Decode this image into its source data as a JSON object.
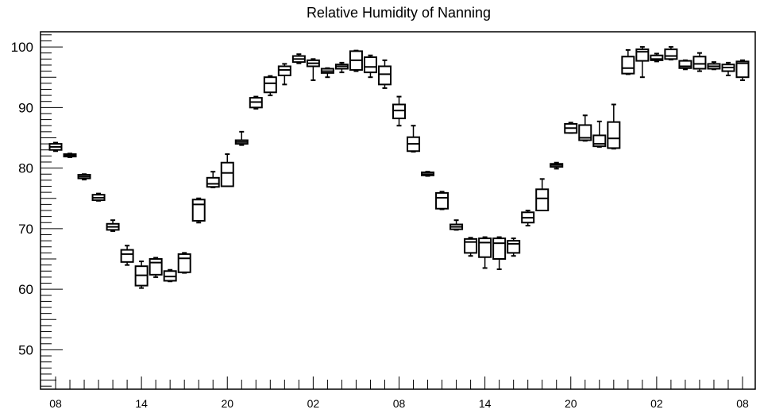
{
  "chart_data": {
    "type": "box",
    "title": "Relative Humidity of Nanning",
    "xlabel": "",
    "ylabel": "",
    "ylim": [
      43.5,
      102.5
    ],
    "yticks": [
      50,
      60,
      70,
      80,
      90,
      100
    ],
    "x_tick_labels": [
      "08",
      "14",
      "20",
      "02",
      "08",
      "14",
      "20",
      "02",
      "08"
    ],
    "x_tick_hours": [
      0,
      6,
      12,
      18,
      24,
      30,
      36,
      42,
      48
    ],
    "grid": false,
    "legend": "none",
    "boxes": [
      {
        "hour": 0,
        "q1": 83.0,
        "median": 83.5,
        "q3": 84.0,
        "min": 82.8,
        "max": 84.2
      },
      {
        "hour": 1,
        "q1": 81.9,
        "median": 82.1,
        "q3": 82.3,
        "min": 81.8,
        "max": 82.4
      },
      {
        "hour": 2,
        "q1": 78.3,
        "median": 78.6,
        "q3": 78.9,
        "min": 78.1,
        "max": 79.0
      },
      {
        "hour": 3,
        "q1": 74.7,
        "median": 75.1,
        "q3": 75.6,
        "min": 74.6,
        "max": 75.8
      },
      {
        "hour": 4,
        "q1": 69.8,
        "median": 70.3,
        "q3": 70.8,
        "min": 69.6,
        "max": 71.4
      },
      {
        "hour": 5,
        "q1": 64.5,
        "median": 65.8,
        "q3": 66.5,
        "min": 64.0,
        "max": 67.2
      },
      {
        "hour": 6,
        "q1": 60.6,
        "median": 62.3,
        "q3": 63.8,
        "min": 60.2,
        "max": 64.6
      },
      {
        "hour": 7,
        "q1": 62.4,
        "median": 64.4,
        "q3": 65.0,
        "min": 62.0,
        "max": 65.2
      },
      {
        "hour": 8,
        "q1": 61.4,
        "median": 62.1,
        "q3": 63.0,
        "min": 61.3,
        "max": 63.2
      },
      {
        "hour": 9,
        "q1": 62.8,
        "median": 65.1,
        "q3": 65.8,
        "min": 62.7,
        "max": 66.0
      },
      {
        "hour": 10,
        "q1": 71.3,
        "median": 74.0,
        "q3": 74.8,
        "min": 71.0,
        "max": 75.0
      },
      {
        "hour": 11,
        "q1": 76.9,
        "median": 77.4,
        "q3": 78.4,
        "min": 76.8,
        "max": 79.4
      },
      {
        "hour": 12,
        "q1": 77.0,
        "median": 79.2,
        "q3": 80.9,
        "min": 77.0,
        "max": 82.3
      },
      {
        "hour": 13,
        "q1": 84.0,
        "median": 84.3,
        "q3": 84.6,
        "min": 83.8,
        "max": 86.0
      },
      {
        "hour": 14,
        "q1": 90.0,
        "median": 90.9,
        "q3": 91.6,
        "min": 89.8,
        "max": 91.8
      },
      {
        "hour": 15,
        "q1": 92.5,
        "median": 94.0,
        "q3": 95.0,
        "min": 92.0,
        "max": 95.2
      },
      {
        "hour": 16,
        "q1": 95.3,
        "median": 96.2,
        "q3": 96.8,
        "min": 93.8,
        "max": 97.2
      },
      {
        "hour": 17,
        "q1": 97.5,
        "median": 98.0,
        "q3": 98.5,
        "min": 97.3,
        "max": 98.8
      },
      {
        "hour": 18,
        "q1": 96.8,
        "median": 97.3,
        "q3": 97.8,
        "min": 94.5,
        "max": 98.0
      },
      {
        "hour": 19,
        "q1": 95.7,
        "median": 96.0,
        "q3": 96.4,
        "min": 95.0,
        "max": 96.5
      },
      {
        "hour": 20,
        "q1": 96.4,
        "median": 96.8,
        "q3": 97.1,
        "min": 95.8,
        "max": 97.4
      },
      {
        "hour": 21,
        "q1": 96.2,
        "median": 97.8,
        "q3": 99.3,
        "min": 96.0,
        "max": 99.4
      },
      {
        "hour": 22,
        "q1": 95.8,
        "median": 96.7,
        "q3": 98.3,
        "min": 95.0,
        "max": 98.6
      },
      {
        "hour": 23,
        "q1": 93.8,
        "median": 95.5,
        "q3": 96.8,
        "min": 93.2,
        "max": 97.8
      },
      {
        "hour": 24,
        "q1": 88.2,
        "median": 89.5,
        "q3": 90.5,
        "min": 87.0,
        "max": 91.8
      },
      {
        "hour": 25,
        "q1": 82.8,
        "median": 84.0,
        "q3": 85.1,
        "min": 82.7,
        "max": 87.0
      },
      {
        "hour": 26,
        "q1": 78.8,
        "median": 79.0,
        "q3": 79.3,
        "min": 78.7,
        "max": 79.4
      },
      {
        "hour": 27,
        "q1": 73.3,
        "median": 75.1,
        "q3": 75.9,
        "min": 73.2,
        "max": 76.1
      },
      {
        "hour": 28,
        "q1": 69.9,
        "median": 70.3,
        "q3": 70.7,
        "min": 69.8,
        "max": 71.4
      },
      {
        "hour": 29,
        "q1": 66.0,
        "median": 67.8,
        "q3": 68.3,
        "min": 65.5,
        "max": 68.5
      },
      {
        "hour": 30,
        "q1": 65.3,
        "median": 67.7,
        "q3": 68.4,
        "min": 63.5,
        "max": 68.6
      },
      {
        "hour": 31,
        "q1": 65.0,
        "median": 67.6,
        "q3": 68.4,
        "min": 63.3,
        "max": 68.6
      },
      {
        "hour": 32,
        "q1": 66.0,
        "median": 67.5,
        "q3": 68.0,
        "min": 65.5,
        "max": 68.4
      },
      {
        "hour": 33,
        "q1": 71.0,
        "median": 71.8,
        "q3": 72.7,
        "min": 70.5,
        "max": 73.0
      },
      {
        "hour": 34,
        "q1": 73.0,
        "median": 75.0,
        "q3": 76.5,
        "min": 73.0,
        "max": 78.2
      },
      {
        "hour": 35,
        "q1": 80.2,
        "median": 80.5,
        "q3": 80.7,
        "min": 79.9,
        "max": 80.9
      },
      {
        "hour": 36,
        "q1": 85.8,
        "median": 86.6,
        "q3": 87.3,
        "min": 85.8,
        "max": 87.5
      },
      {
        "hour": 37,
        "q1": 84.6,
        "median": 85.0,
        "q3": 87.1,
        "min": 84.5,
        "max": 88.7
      },
      {
        "hour": 38,
        "q1": 83.6,
        "median": 84.0,
        "q3": 85.4,
        "min": 83.5,
        "max": 87.7
      },
      {
        "hour": 39,
        "q1": 83.3,
        "median": 84.9,
        "q3": 87.6,
        "min": 83.2,
        "max": 90.5
      },
      {
        "hour": 40,
        "q1": 95.6,
        "median": 96.5,
        "q3": 98.4,
        "min": 95.5,
        "max": 99.5
      },
      {
        "hour": 41,
        "q1": 97.7,
        "median": 99.2,
        "q3": 99.6,
        "min": 95.0,
        "max": 100.0
      },
      {
        "hour": 42,
        "q1": 97.8,
        "median": 98.0,
        "q3": 98.6,
        "min": 97.6,
        "max": 98.9
      },
      {
        "hour": 43,
        "q1": 98.0,
        "median": 98.5,
        "q3": 99.6,
        "min": 97.9,
        "max": 100.0
      },
      {
        "hour": 44,
        "q1": 96.5,
        "median": 96.8,
        "q3": 97.7,
        "min": 96.3,
        "max": 97.8
      },
      {
        "hour": 45,
        "q1": 96.4,
        "median": 97.2,
        "q3": 98.4,
        "min": 96.0,
        "max": 99.0
      },
      {
        "hour": 46,
        "q1": 96.4,
        "median": 96.8,
        "q3": 97.2,
        "min": 96.3,
        "max": 97.5
      },
      {
        "hour": 47,
        "q1": 96.0,
        "median": 96.6,
        "q3": 97.1,
        "min": 95.3,
        "max": 97.4
      },
      {
        "hour": 48,
        "q1": 95.0,
        "median": 97.3,
        "q3": 97.6,
        "min": 94.5,
        "max": 97.8
      }
    ]
  }
}
